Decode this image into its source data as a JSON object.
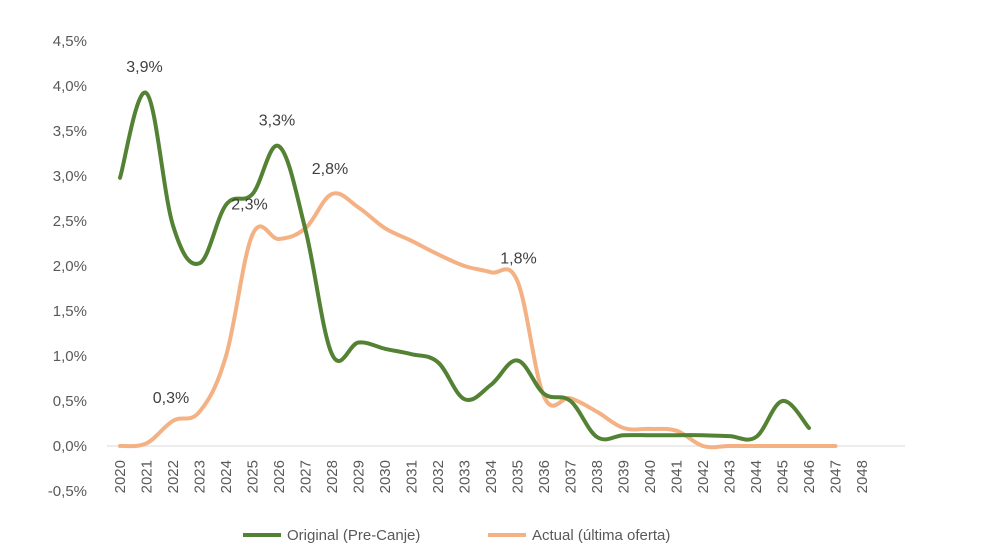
{
  "chart_data": {
    "type": "line",
    "title": "",
    "xlabel": "",
    "ylabel": "",
    "x": [
      2020,
      2021,
      2022,
      2023,
      2024,
      2025,
      2026,
      2027,
      2028,
      2029,
      2030,
      2031,
      2032,
      2033,
      2034,
      2035,
      2036,
      2037,
      2038,
      2039,
      2040,
      2041,
      2042,
      2043,
      2044,
      2045,
      2046,
      2047,
      2048
    ],
    "x_tick_labels": [
      "2020",
      "2021",
      "2022",
      "2023",
      "2024",
      "2025",
      "2026",
      "2027",
      "2028",
      "2029",
      "2030",
      "2031",
      "2032",
      "2033",
      "2034",
      "2035",
      "2036",
      "2037",
      "2038",
      "2039",
      "2040",
      "2041",
      "2042",
      "2043",
      "2044",
      "2045",
      "2046",
      "2047",
      "2048"
    ],
    "ylim": [
      -0.5,
      4.5
    ],
    "y_ticks": [
      -0.5,
      0.0,
      0.5,
      1.0,
      1.5,
      2.0,
      2.5,
      3.0,
      3.5,
      4.0,
      4.5
    ],
    "y_tick_labels": [
      "-0,5%",
      "0,0%",
      "0,5%",
      "1,0%",
      "1,5%",
      "2,0%",
      "2,5%",
      "3,0%",
      "3,5%",
      "4,0%",
      "4,5%"
    ],
    "grid": false,
    "legend_position": "bottom",
    "series": [
      {
        "name": "Original (Pre-Canje)",
        "color": "#548235",
        "values": [
          2.98,
          3.92,
          2.45,
          2.03,
          2.68,
          2.8,
          3.33,
          2.4,
          1.02,
          1.15,
          1.08,
          1.02,
          0.93,
          0.52,
          0.68,
          0.95,
          0.58,
          0.5,
          0.1,
          0.12,
          0.12,
          0.12,
          0.12,
          0.11,
          0.1,
          0.5,
          0.2,
          null,
          null
        ]
      },
      {
        "name": "Actual (última oferta)",
        "color": "#F4B183",
        "values": [
          0.0,
          0.03,
          0.28,
          0.38,
          1.0,
          2.35,
          2.3,
          2.42,
          2.8,
          2.65,
          2.42,
          2.28,
          2.13,
          2.0,
          1.93,
          1.83,
          0.55,
          0.53,
          0.38,
          0.2,
          0.19,
          0.17,
          0.0,
          0.0,
          0.0,
          0.0,
          0.0,
          0.0,
          null
        ]
      }
    ],
    "annotations": [
      {
        "text": "3,9%",
        "series": 0,
        "x": 2021
      },
      {
        "text": "3,3%",
        "series": 0,
        "x": 2026
      },
      {
        "text": "2,3%",
        "series": 1,
        "x": 2025
      },
      {
        "text": "2,8%",
        "series": 1,
        "x": 2028
      },
      {
        "text": "0,3%",
        "series": 1,
        "x": 2022
      },
      {
        "text": "1,8%",
        "series": 1,
        "x": 2035
      }
    ]
  }
}
